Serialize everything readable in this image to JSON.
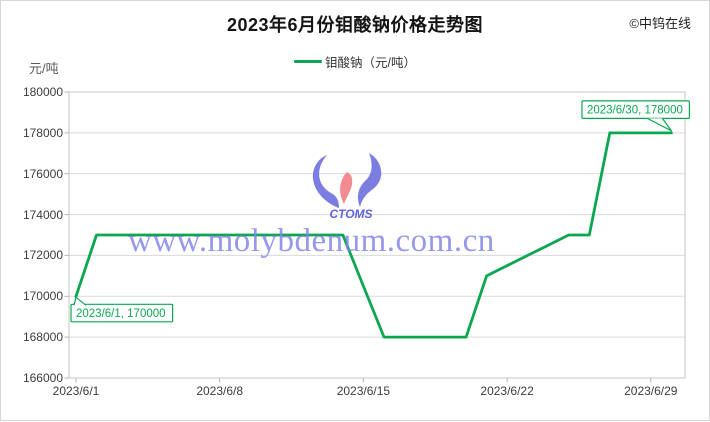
{
  "header": {
    "title": "2023年6月份钼酸钠价格走势图",
    "copyright": "©中钨在线"
  },
  "legend": {
    "label": "钼酸钠（元/吨）"
  },
  "axes": {
    "y_unit": "元/吨"
  },
  "watermark": {
    "text": "www.molybdenum.com.cn",
    "logo_text": "CTOMS"
  },
  "colors": {
    "line": "#0ba750",
    "annotation": "#0ba750",
    "grid": "#dadada",
    "axis": "#c4c4c4",
    "tick": "#b3b3b3",
    "watermark": "#8082e8",
    "logo_blue": "#7b7de0",
    "logo_pink": "#f28b92"
  },
  "chart_data": {
    "type": "line",
    "title": "2023年6月份钼酸钠价格走势图",
    "x": [
      "2023/6/1",
      "2023/6/2",
      "2023/6/3",
      "2023/6/4",
      "2023/6/5",
      "2023/6/6",
      "2023/6/7",
      "2023/6/8",
      "2023/6/9",
      "2023/6/10",
      "2023/6/11",
      "2023/6/12",
      "2023/6/13",
      "2023/6/14",
      "2023/6/15",
      "2023/6/16",
      "2023/6/17",
      "2023/6/18",
      "2023/6/19",
      "2023/6/20",
      "2023/6/21",
      "2023/6/22",
      "2023/6/23",
      "2023/6/24",
      "2023/6/25",
      "2023/6/26",
      "2023/6/27",
      "2023/6/28",
      "2023/6/29",
      "2023/6/30"
    ],
    "series": [
      {
        "name": "钼酸钠（元/吨）",
        "values": [
          170000,
          173000,
          173000,
          173000,
          173000,
          173000,
          173000,
          173000,
          173000,
          173000,
          173000,
          173000,
          173000,
          173000,
          170500,
          168000,
          168000,
          168000,
          168000,
          168000,
          171000,
          171500,
          172000,
          172500,
          173000,
          173000,
          178000,
          178000,
          178000,
          178000
        ]
      }
    ],
    "ylim": [
      166000,
      180000
    ],
    "yticks": [
      180000,
      178000,
      176000,
      174000,
      172000,
      170000,
      168000,
      166000
    ],
    "xticks": [
      "2023/6/1",
      "2023/6/8",
      "2023/6/15",
      "2023/6/22",
      "2023/6/29"
    ],
    "ylabel": "元/吨",
    "grid": "horizontal",
    "legend_position": "top",
    "annotations": [
      {
        "text": "2023/6/1, 170000",
        "date": "2023/6/1",
        "value": 170000,
        "position": "below-right"
      },
      {
        "text": "2023/6/30, 178000",
        "date": "2023/6/30",
        "value": 178000,
        "position": "above-left"
      }
    ]
  }
}
